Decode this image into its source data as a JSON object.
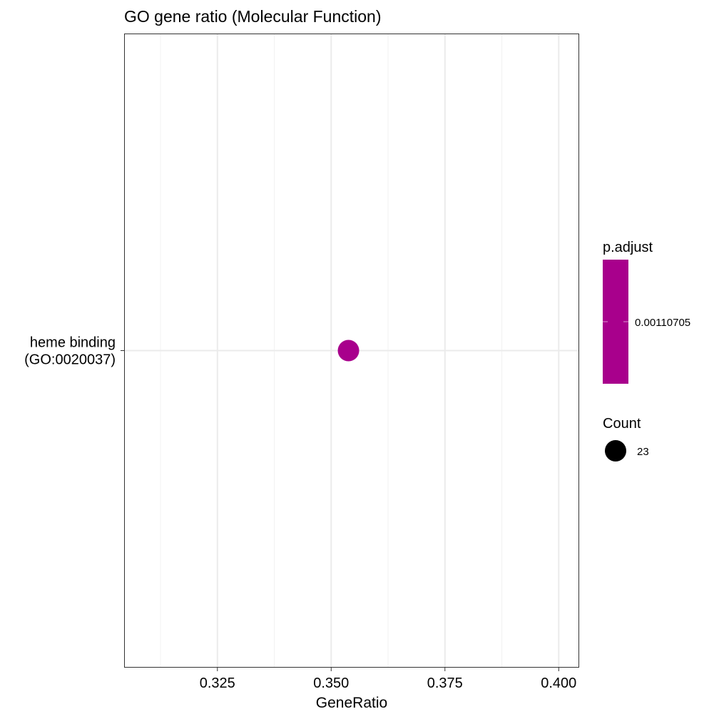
{
  "chart_data": {
    "type": "scatter",
    "title": "GO gene ratio (Molecular Function)",
    "xlabel": "GeneRatio",
    "ylabel": "",
    "xlim": [
      0.3045,
      0.4045
    ],
    "x_ticks": [
      "0.325",
      "0.350",
      "0.375",
      "0.400"
    ],
    "x_tick_values": [
      0.325,
      0.35,
      0.375,
      0.4
    ],
    "x_minor_values": [
      0.3125,
      0.3375,
      0.3625,
      0.3875
    ],
    "categories": [
      "heme binding\n(GO:0020037)"
    ],
    "points": [
      {
        "category": "heme binding\n(GO:0020037)",
        "x": 0.3538,
        "count": 23,
        "p_adjust": 0.00110705
      }
    ],
    "grid": true,
    "legend_position": "right",
    "color_legend": {
      "title": "p.adjust",
      "labels": [
        "0.00110705"
      ],
      "color": "#A8008C"
    },
    "size_legend": {
      "title": "Count",
      "labels": [
        "23"
      ]
    }
  }
}
